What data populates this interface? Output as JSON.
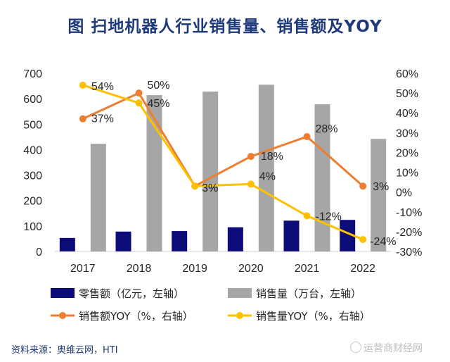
{
  "page": {
    "title": "图 扫地机器人行业销售量、销售额及YOY",
    "source": "资料来源：奥维云网，HTI",
    "watermark": "运营商财经网"
  },
  "chart_data": {
    "type": "bar",
    "title": "图 扫地机器人行业销售量、销售额及YOY",
    "categories": [
      "2017",
      "2018",
      "2019",
      "2020",
      "2021",
      "2022"
    ],
    "left_axis": {
      "ylim": [
        0,
        700
      ],
      "ticks": [
        0,
        100,
        200,
        300,
        400,
        500,
        600,
        700
      ]
    },
    "right_axis": {
      "ylim": [
        -30,
        60
      ],
      "ticks": [
        -30,
        -20,
        -10,
        0,
        10,
        20,
        30,
        40,
        50,
        60
      ],
      "tick_labels": [
        "-30%",
        "-20%",
        "-10%",
        "0%",
        "10%",
        "20%",
        "30%",
        "40%",
        "50%",
        "60%"
      ]
    },
    "series": [
      {
        "name": "零售额（亿元，左轴）",
        "type": "bar",
        "axis": "left",
        "color": "#0d0d7a",
        "values": [
          53,
          78,
          80,
          95,
          121,
          124
        ]
      },
      {
        "name": "销售量（万台，左轴）",
        "type": "bar",
        "axis": "left",
        "color": "#a6a6a6",
        "values": [
          423,
          614,
          628,
          655,
          578,
          442
        ]
      },
      {
        "name": "销售额YOY（%，右轴）",
        "type": "line",
        "axis": "right",
        "color": "#ed7d31",
        "values": [
          37,
          50,
          3,
          18,
          28,
          3
        ],
        "labels": [
          "37%",
          "50%",
          "3%",
          "18%",
          "28%",
          "3%"
        ]
      },
      {
        "name": "销售量YOY（%，右轴）",
        "type": "line",
        "axis": "right",
        "color": "#ffc000",
        "values": [
          54,
          45,
          3,
          4,
          -12,
          -24
        ],
        "labels": [
          "54%",
          "45%",
          "3%",
          "4%",
          "-12%",
          "-24%"
        ]
      }
    ],
    "grid": false,
    "legend_position": "bottom"
  }
}
